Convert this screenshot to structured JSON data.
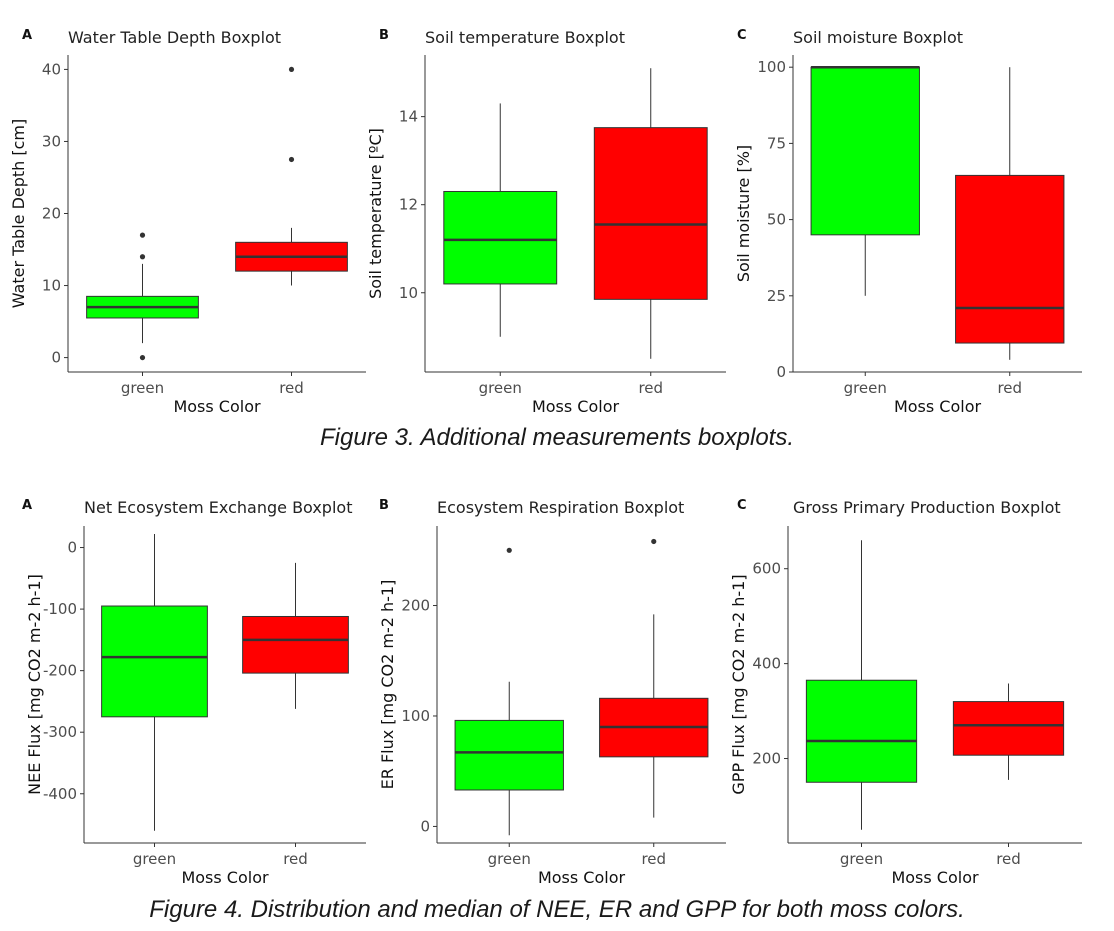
{
  "captions": {
    "figure3": "Figure 3. Additional measurements boxplots.",
    "figure4": "Figure 4. Distribution and median of NEE, ER and GPP for both moss colors."
  },
  "colors": {
    "green": "#00ff00",
    "red": "#ff0000",
    "median": "#333333",
    "outlier": "#333333",
    "axis": "#333333"
  },
  "chart_data": [
    {
      "id": "water-table",
      "panel_label": "A",
      "type": "boxplot",
      "title": "Water Table Depth Boxplot",
      "xlabel": "Moss Color",
      "ylabel": "Water Table Depth [cm]",
      "categories": [
        "green",
        "red"
      ],
      "ylim": [
        -2,
        42
      ],
      "yticks": [
        0,
        10,
        20,
        30,
        40
      ],
      "yticklabels": [
        "0",
        "10",
        "20",
        "30",
        "40"
      ],
      "boxes": [
        {
          "name": "green",
          "lower_whisker": 2,
          "q1": 5.5,
          "median": 7,
          "q3": 8.5,
          "upper_whisker": 13,
          "outliers": [
            0,
            14,
            17
          ]
        },
        {
          "name": "red",
          "lower_whisker": 10,
          "q1": 12,
          "median": 14,
          "q3": 16,
          "upper_whisker": 18,
          "outliers": [
            27.5,
            40
          ]
        }
      ]
    },
    {
      "id": "soil-temp",
      "panel_label": "B",
      "type": "boxplot",
      "title": "Soil temperature Boxplot",
      "xlabel": "Moss Color",
      "ylabel": "Soil temperature [ºC]",
      "categories": [
        "green",
        "red"
      ],
      "ylim": [
        8.2,
        15.4
      ],
      "yticks": [
        10,
        12,
        14
      ],
      "yticklabels": [
        "10",
        "12",
        "14"
      ],
      "boxes": [
        {
          "name": "green",
          "lower_whisker": 9,
          "q1": 10.2,
          "median": 11.2,
          "q3": 12.3,
          "upper_whisker": 14.3,
          "outliers": []
        },
        {
          "name": "red",
          "lower_whisker": 8.5,
          "q1": 9.85,
          "median": 11.55,
          "q3": 13.75,
          "upper_whisker": 15.1,
          "outliers": []
        }
      ]
    },
    {
      "id": "soil-moisture",
      "panel_label": "C",
      "type": "boxplot",
      "title": "Soil moisture Boxplot",
      "xlabel": "Moss Color",
      "ylabel": "Soil moisture [%]",
      "categories": [
        "green",
        "red"
      ],
      "ylim": [
        0,
        104
      ],
      "yticks": [
        0,
        25,
        50,
        75,
        100
      ],
      "yticklabels": [
        "0",
        "25",
        "50",
        "75",
        "100"
      ],
      "boxes": [
        {
          "name": "green",
          "lower_whisker": 25,
          "q1": 45,
          "median": 100,
          "q3": 100,
          "upper_whisker": 100,
          "outliers": []
        },
        {
          "name": "red",
          "lower_whisker": 4,
          "q1": 9.5,
          "median": 21,
          "q3": 64.5,
          "upper_whisker": 100,
          "outliers": []
        }
      ]
    },
    {
      "id": "nee",
      "panel_label": "A",
      "type": "boxplot",
      "title": "Net Ecosystem Exchange Boxplot",
      "xlabel": "Moss Color",
      "ylabel": "NEE Flux [mg CO2 m-2 h-1]",
      "categories": [
        "green",
        "red"
      ],
      "ylim": [
        -480,
        35
      ],
      "yticks": [
        -400,
        -300,
        -200,
        -100,
        0
      ],
      "yticklabels": [
        "-400",
        "-300",
        "-200",
        "-100",
        "0"
      ],
      "boxes": [
        {
          "name": "green",
          "lower_whisker": -460,
          "q1": -275,
          "median": -178,
          "q3": -95,
          "upper_whisker": 22,
          "outliers": []
        },
        {
          "name": "red",
          "lower_whisker": -262,
          "q1": -204,
          "median": -150,
          "q3": -112,
          "upper_whisker": -25,
          "outliers": []
        }
      ]
    },
    {
      "id": "er",
      "panel_label": "B",
      "type": "boxplot",
      "title": "Ecosystem Respiration Boxplot",
      "xlabel": "Moss Color",
      "ylabel": "ER Flux [mg CO2 m-2 h-1]",
      "categories": [
        "green",
        "red"
      ],
      "ylim": [
        -15,
        272
      ],
      "yticks": [
        0,
        100,
        200
      ],
      "yticklabels": [
        "0",
        "100",
        "200"
      ],
      "boxes": [
        {
          "name": "green",
          "lower_whisker": -8,
          "q1": 33,
          "median": 67,
          "q3": 96,
          "upper_whisker": 131,
          "outliers": [
            250
          ]
        },
        {
          "name": "red",
          "lower_whisker": 8,
          "q1": 63,
          "median": 90,
          "q3": 116,
          "upper_whisker": 192,
          "outliers": [
            258
          ]
        }
      ]
    },
    {
      "id": "gpp",
      "panel_label": "C",
      "type": "boxplot",
      "title": "Gross Primary Production Boxplot",
      "xlabel": "Moss Color",
      "ylabel": "GPP Flux [mg CO2 m-2 h-1]",
      "categories": [
        "green",
        "red"
      ],
      "ylim": [
        22,
        690
      ],
      "yticks": [
        200,
        400,
        600
      ],
      "yticklabels": [
        "200",
        "400",
        "600"
      ],
      "boxes": [
        {
          "name": "green",
          "lower_whisker": 50,
          "q1": 150,
          "median": 237,
          "q3": 365,
          "upper_whisker": 660,
          "outliers": []
        },
        {
          "name": "red",
          "lower_whisker": 155,
          "q1": 207,
          "median": 270,
          "q3": 320,
          "upper_whisker": 358,
          "outliers": []
        }
      ]
    }
  ]
}
